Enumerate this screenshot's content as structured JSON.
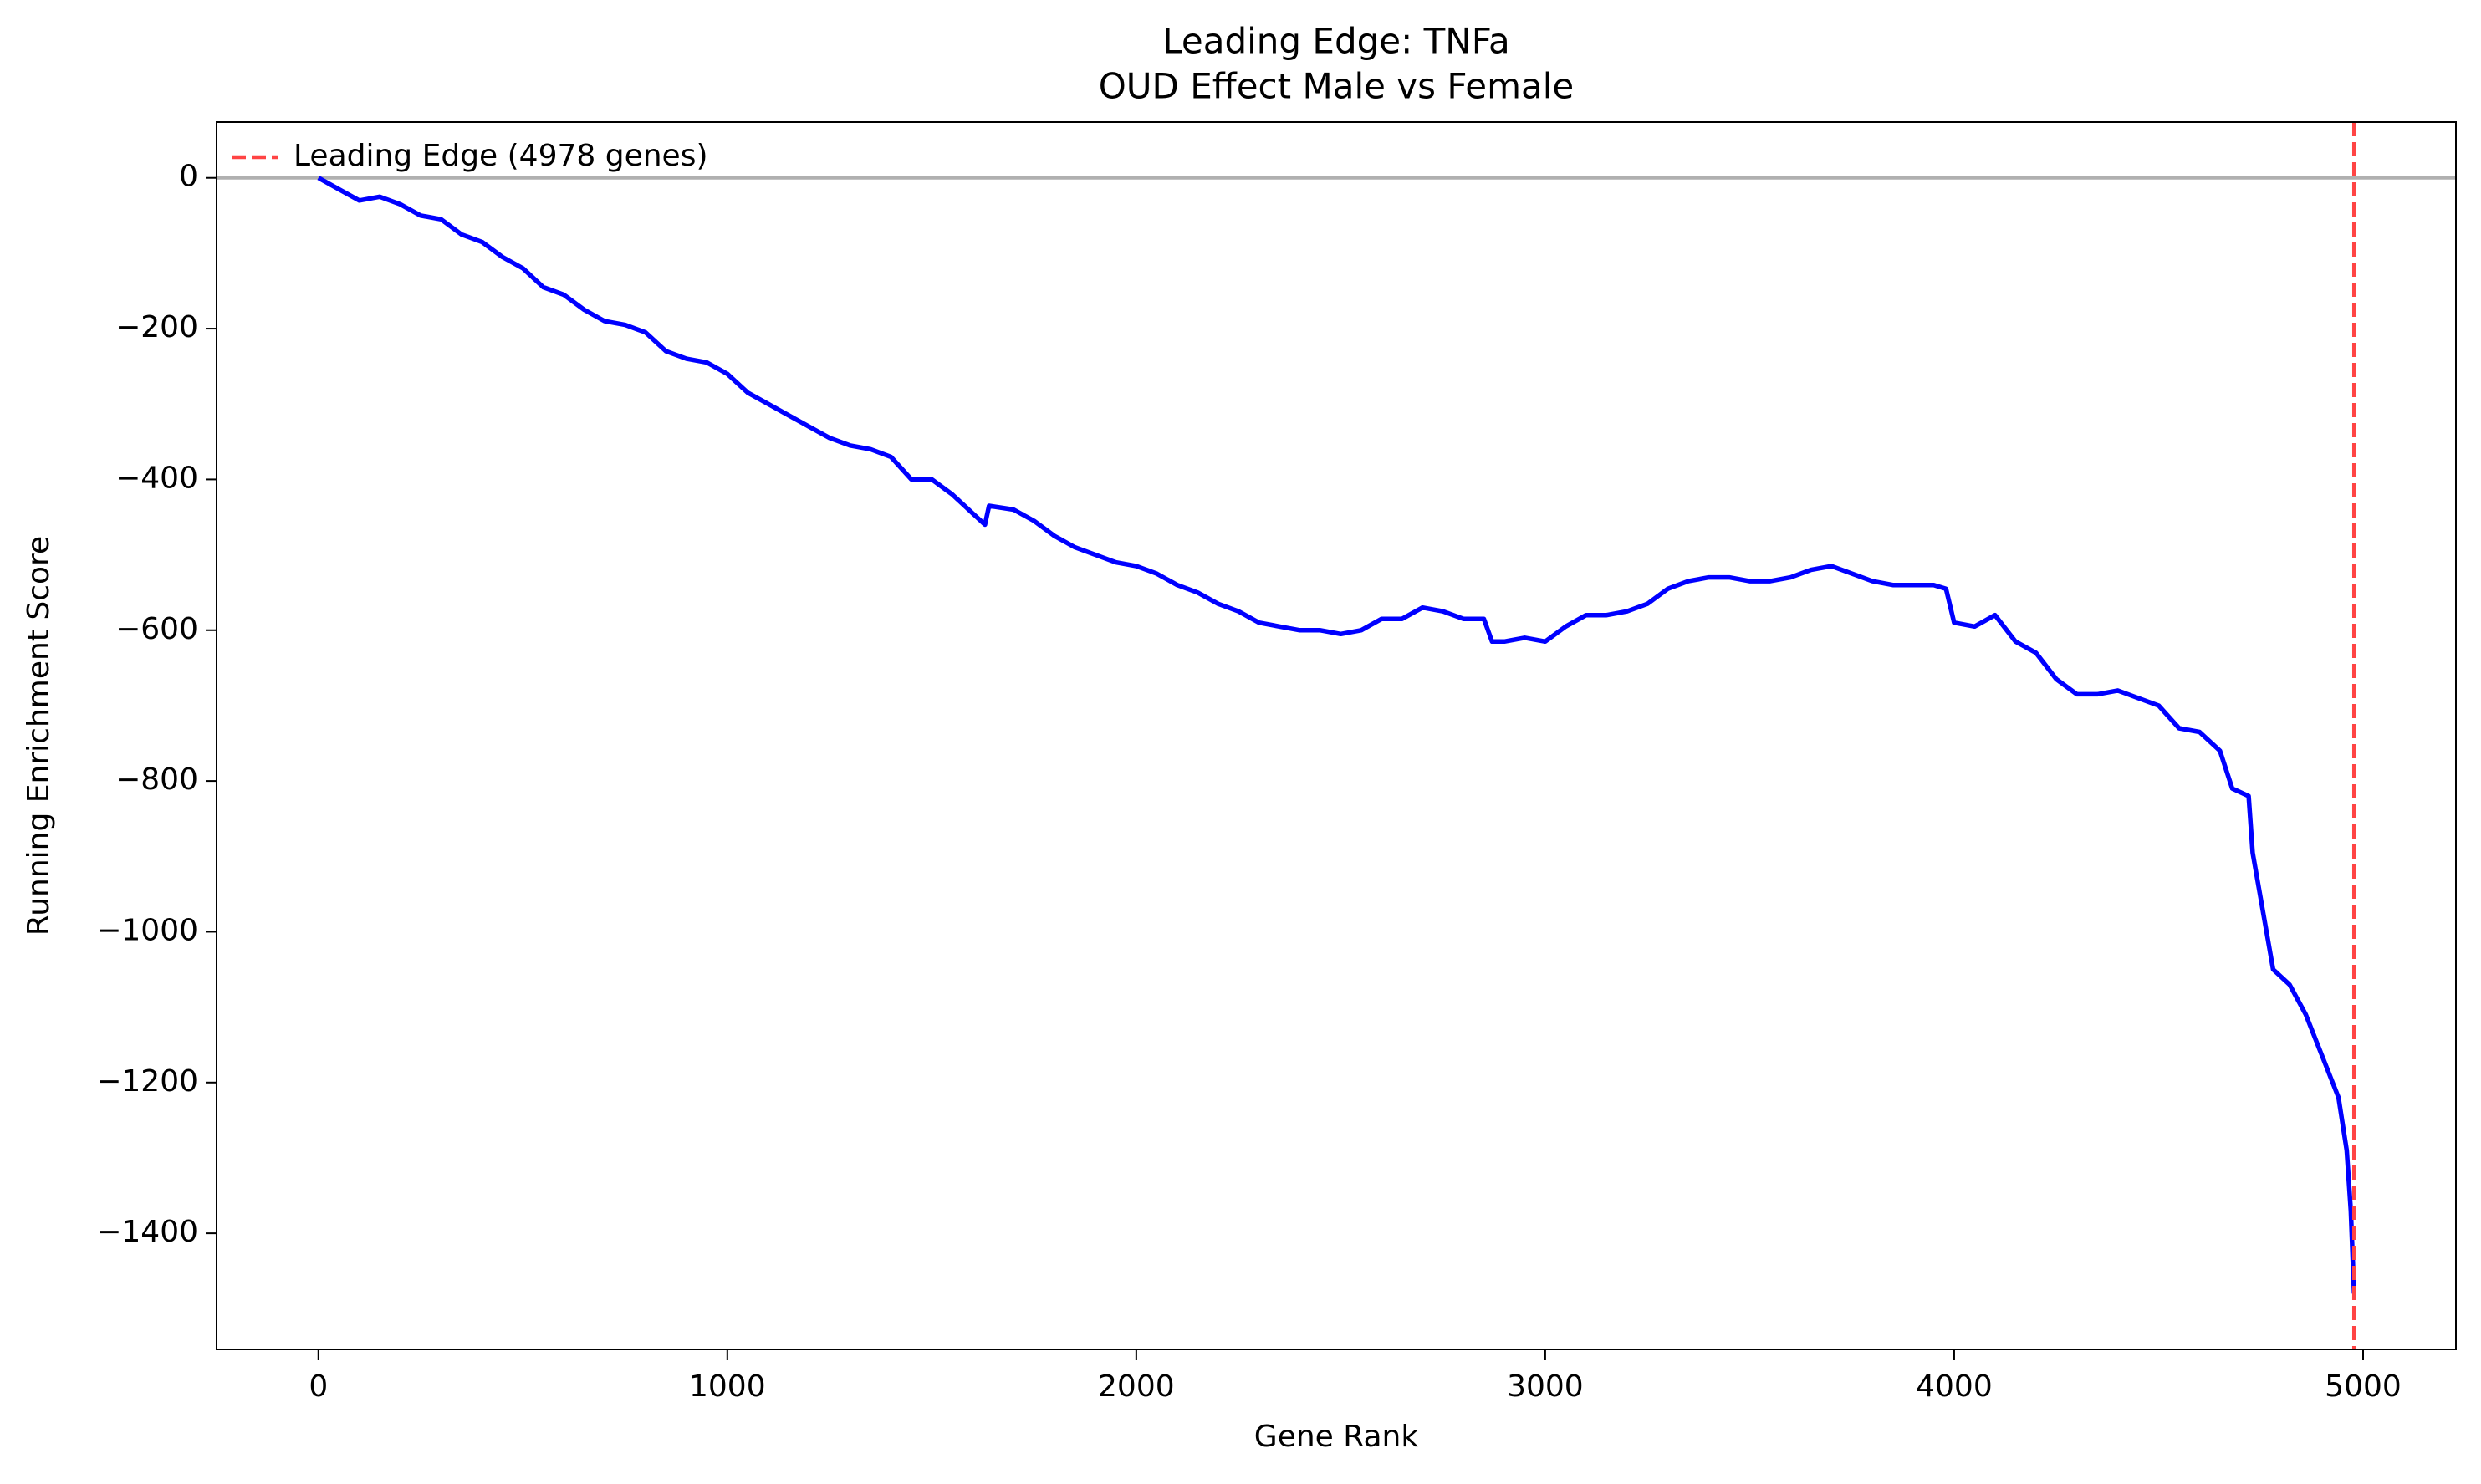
{
  "chart_data": {
    "type": "line",
    "title": "Leading Edge: TNFa",
    "subtitle": "OUD Effect Male vs Female",
    "x_label": "Gene Rank",
    "y_label": "Running Enrichment Score",
    "xlim": [
      -249,
      5227
    ],
    "ylim": [
      -1554,
      74
    ],
    "xticks": [
      0,
      1000,
      2000,
      3000,
      4000,
      5000
    ],
    "yticks": [
      {
        "value": -1400,
        "label": "−1400"
      },
      {
        "value": -1200,
        "label": "−1200"
      },
      {
        "value": -1000,
        "label": "−1000"
      },
      {
        "value": -800,
        "label": "−800"
      },
      {
        "value": -600,
        "label": "−600"
      },
      {
        "value": -400,
        "label": "−400"
      },
      {
        "value": -200,
        "label": "−200"
      },
      0
    ],
    "hline": {
      "y": 0,
      "color": "#b0b0b0"
    },
    "vline": {
      "x": 4978,
      "label": "Leading Edge (4978 genes)",
      "color": "#ff4444"
    },
    "legend_position": "upper left",
    "series": [
      {
        "color": "#0000ff",
        "x": [
          0,
          50,
          100,
          150,
          200,
          250,
          300,
          350,
          400,
          450,
          500,
          550,
          600,
          650,
          700,
          750,
          800,
          850,
          900,
          950,
          1000,
          1050,
          1100,
          1150,
          1200,
          1250,
          1300,
          1350,
          1400,
          1450,
          1500,
          1550,
          1600,
          1630,
          1640,
          1700,
          1750,
          1800,
          1850,
          1900,
          1950,
          2000,
          2050,
          2100,
          2150,
          2200,
          2250,
          2300,
          2350,
          2400,
          2450,
          2500,
          2550,
          2600,
          2650,
          2700,
          2750,
          2800,
          2850,
          2870,
          2900,
          2950,
          3000,
          3050,
          3100,
          3150,
          3200,
          3250,
          3300,
          3350,
          3400,
          3450,
          3500,
          3550,
          3600,
          3650,
          3700,
          3750,
          3800,
          3850,
          3900,
          3950,
          3980,
          4000,
          4050,
          4100,
          4150,
          4200,
          4250,
          4300,
          4350,
          4400,
          4450,
          4500,
          4550,
          4600,
          4650,
          4680,
          4720,
          4730,
          4780,
          4820,
          4860,
          4900,
          4940,
          4960,
          4970,
          4978
        ],
        "values": [
          0,
          -15,
          -30,
          -25,
          -35,
          -50,
          -55,
          -75,
          -85,
          -105,
          -120,
          -145,
          -155,
          -175,
          -190,
          -195,
          -205,
          -230,
          -240,
          -245,
          -260,
          -285,
          -300,
          -315,
          -330,
          -345,
          -355,
          -360,
          -370,
          -400,
          -400,
          -420,
          -445,
          -460,
          -435,
          -440,
          -455,
          -475,
          -490,
          -500,
          -510,
          -515,
          -525,
          -540,
          -550,
          -565,
          -575,
          -590,
          -595,
          -600,
          -600,
          -605,
          -600,
          -585,
          -585,
          -570,
          -575,
          -585,
          -585,
          -615,
          -615,
          -610,
          -615,
          -595,
          -580,
          -580,
          -575,
          -565,
          -545,
          -535,
          -530,
          -530,
          -535,
          -535,
          -530,
          -520,
          -515,
          -525,
          -535,
          -540,
          -540,
          -540,
          -545,
          -590,
          -595,
          -580,
          -615,
          -630,
          -665,
          -685,
          -685,
          -680,
          -690,
          -700,
          -730,
          -735,
          -760,
          -810,
          -820,
          -895,
          -1050,
          -1070,
          -1110,
          -1165,
          -1220,
          -1290,
          -1370,
          -1480
        ]
      }
    ]
  }
}
